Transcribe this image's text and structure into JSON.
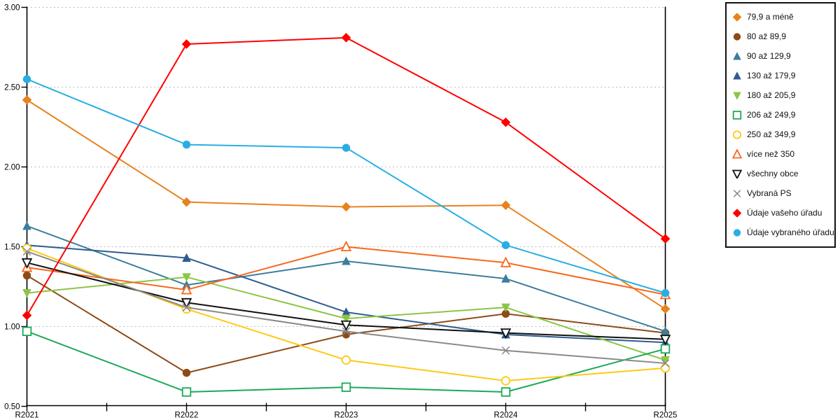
{
  "chart_data": {
    "type": "line",
    "title": "",
    "xlabel": "",
    "ylabel": "",
    "ylim": [
      0.5,
      3.0
    ],
    "grid": "horizontal-dotted",
    "legend_position": "right-outside",
    "x_categories": [
      "R2021",
      "R2022",
      "R2023",
      "R2024",
      "R2025"
    ],
    "y_tick_labels": [
      "3.00",
      "2.50",
      "2.00",
      "1.50",
      "1.00",
      "0.50"
    ],
    "y_tick_values": [
      3.0,
      2.5,
      2.0,
      1.5,
      1.0,
      0.5
    ],
    "series": [
      {
        "name": "79,9 a méně",
        "color": "#E8821E",
        "marker": "diamond",
        "fill": "filled",
        "values": [
          2.42,
          1.78,
          1.75,
          1.76,
          1.11
        ]
      },
      {
        "name": "80 až 89,9",
        "color": "#8C4B17",
        "marker": "circle",
        "fill": "filled",
        "values": [
          1.32,
          0.71,
          0.95,
          1.08,
          0.96
        ]
      },
      {
        "name": "90 až 129,9",
        "color": "#3C7E9B",
        "marker": "triangle-up",
        "fill": "filled",
        "values": [
          1.63,
          1.26,
          1.41,
          1.3,
          0.97
        ]
      },
      {
        "name": "130 až 179,9",
        "color": "#2E5C8F",
        "marker": "triangle-up",
        "fill": "filled",
        "values": [
          1.51,
          1.43,
          1.09,
          0.95,
          0.9
        ]
      },
      {
        "name": "180 až 205,9",
        "color": "#8CC544",
        "marker": "triangle-down",
        "fill": "filled",
        "values": [
          1.21,
          1.31,
          1.05,
          1.12,
          0.79
        ]
      },
      {
        "name": "206 až 249,9",
        "color": "#1CA957",
        "marker": "square",
        "fill": "open",
        "values": [
          0.97,
          0.59,
          0.62,
          0.59,
          0.86
        ]
      },
      {
        "name": "250 až 349,9",
        "color": "#FFC913",
        "marker": "circle",
        "fill": "open",
        "values": [
          1.49,
          1.11,
          0.79,
          0.66,
          0.74
        ]
      },
      {
        "name": "více než 350",
        "color": "#F9671D",
        "marker": "triangle-up",
        "fill": "open",
        "values": [
          1.37,
          1.23,
          1.5,
          1.4,
          1.2
        ]
      },
      {
        "name": "všechny obce",
        "color": "#111111",
        "marker": "triangle-down",
        "fill": "open",
        "values": [
          1.4,
          1.15,
          1.01,
          0.96,
          0.92
        ]
      },
      {
        "name": "Vybraná PS",
        "color": "#8A8A8A",
        "marker": "x",
        "fill": "open",
        "values": [
          1.47,
          1.12,
          0.97,
          0.85,
          0.77
        ]
      },
      {
        "name": "Údaje vašeho úřadu",
        "color": "#FF0000",
        "marker": "diamond",
        "fill": "filled",
        "values": [
          1.07,
          2.77,
          2.81,
          2.28,
          1.55
        ]
      },
      {
        "name": "Údaje vybraného úřadu",
        "color": "#29AEE3",
        "marker": "circle",
        "fill": "filled",
        "values": [
          2.55,
          2.14,
          2.12,
          1.51,
          1.21
        ]
      }
    ],
    "colors": {
      "gridline": "#BBBBBB",
      "axis": "#000000",
      "background": "#FFFFFF"
    }
  }
}
